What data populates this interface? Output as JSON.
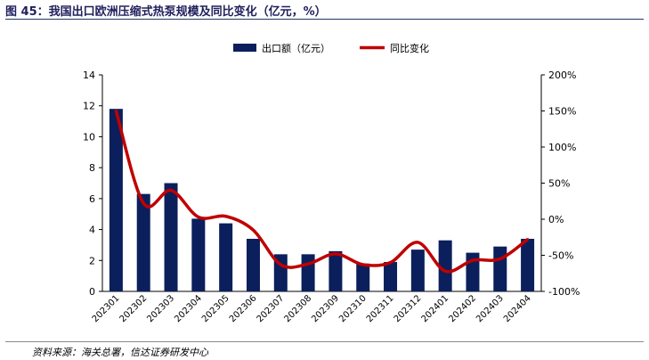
{
  "figure": {
    "title": "图 45：我国出口欧洲压缩式热泵规模及同比变化（亿元，%）",
    "source": "资料来源：海关总署，信达证券研发中心"
  },
  "colors": {
    "bar": "#0b1f5c",
    "line": "#c00000",
    "axis": "#000000",
    "rule": "#1f3864"
  },
  "chart_data": {
    "type": "bar",
    "categories": [
      "202301",
      "202302",
      "202303",
      "202304",
      "202305",
      "202306",
      "202307",
      "202308",
      "202309",
      "202310",
      "202311",
      "202312",
      "202401",
      "202402",
      "202403",
      "202404"
    ],
    "series": [
      {
        "name": "出口额（亿元）",
        "type": "bar",
        "axis": "left",
        "values": [
          11.8,
          6.3,
          7.0,
          4.7,
          4.4,
          3.4,
          2.4,
          2.4,
          2.6,
          1.8,
          1.9,
          2.7,
          3.3,
          2.5,
          2.9,
          3.4
        ]
      },
      {
        "name": "同比变化",
        "type": "line",
        "axis": "right",
        "values": [
          150,
          22,
          40,
          3,
          4,
          -15,
          -63,
          -62,
          -48,
          -63,
          -60,
          -32,
          -72,
          -57,
          -55,
          -28
        ]
      }
    ],
    "y_left": {
      "min": 0,
      "max": 14,
      "ticks": [
        0,
        2,
        4,
        6,
        8,
        10,
        12,
        14
      ]
    },
    "y_right": {
      "min": -100,
      "max": 200,
      "ticks": [
        -100,
        -50,
        0,
        50,
        100,
        150,
        200
      ],
      "tick_labels": [
        "-100%",
        "-50%",
        "0%",
        "50%",
        "100%",
        "150%",
        "200%"
      ]
    },
    "legend_position": "top-center",
    "grid": false
  }
}
